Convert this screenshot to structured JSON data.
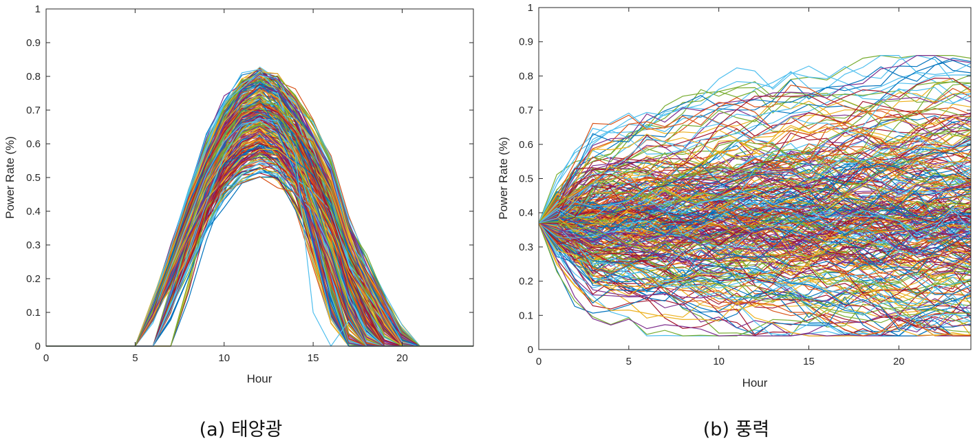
{
  "chart_data": [
    {
      "id": "solar",
      "type": "line",
      "caption": "(a) 태양광",
      "title": "",
      "xlabel": "Hour",
      "ylabel": "Power Rate (%)",
      "xlim": [
        0,
        24
      ],
      "ylim": [
        0,
        1
      ],
      "xticks": [
        0,
        5,
        10,
        15,
        20
      ],
      "yticks": [
        0,
        0.1,
        0.2,
        0.3,
        0.4,
        0.5,
        0.6,
        0.7,
        0.8,
        0.9,
        1
      ],
      "grid": false,
      "legend": "none",
      "x": [
        0,
        1,
        2,
        3,
        4,
        5,
        6,
        7,
        8,
        9,
        10,
        11,
        12,
        13,
        14,
        15,
        16,
        17,
        18,
        19,
        20,
        21,
        22,
        23,
        24
      ],
      "series_count": 300,
      "envelope": {
        "peak_hour": 12,
        "peak_min": 0.51,
        "peak_max": 0.82,
        "mean_profile": [
          0,
          0,
          0,
          0,
          0,
          0,
          0.1,
          0.2,
          0.35,
          0.52,
          0.66,
          0.74,
          0.68,
          0.62,
          0.52,
          0.38,
          0.23,
          0.1,
          0.03,
          0.01,
          0.01,
          0,
          0,
          0,
          0
        ]
      }
    },
    {
      "id": "wind",
      "type": "line",
      "caption": "(b) 풍력",
      "title": "",
      "xlabel": "Hour",
      "ylabel": "Power Rate (%)",
      "xlim": [
        0,
        24
      ],
      "ylim": [
        0,
        1
      ],
      "xticks": [
        0,
        5,
        10,
        15,
        20
      ],
      "yticks": [
        0,
        0.1,
        0.2,
        0.3,
        0.4,
        0.5,
        0.6,
        0.7,
        0.8,
        0.9,
        1
      ],
      "grid": false,
      "legend": "none",
      "x": [
        0,
        1,
        2,
        3,
        4,
        5,
        6,
        7,
        8,
        9,
        10,
        11,
        12,
        13,
        14,
        15,
        16,
        17,
        18,
        19,
        20,
        21,
        22,
        23,
        24
      ],
      "series_count": 300,
      "envelope": {
        "start_value": 0.37,
        "min": 0.04,
        "max": 0.86,
        "mean_profile": [
          0.37,
          0.4,
          0.42,
          0.43,
          0.44,
          0.44,
          0.44,
          0.43,
          0.43,
          0.43,
          0.42,
          0.42,
          0.41,
          0.41,
          0.41,
          0.4,
          0.4,
          0.4,
          0.4,
          0.41,
          0.42,
          0.44,
          0.46,
          0.48,
          0.5
        ]
      }
    }
  ],
  "colors": [
    "#0072bd",
    "#d95319",
    "#edb120",
    "#7e2f8e",
    "#77ac30",
    "#4dbeee",
    "#a2142f"
  ]
}
